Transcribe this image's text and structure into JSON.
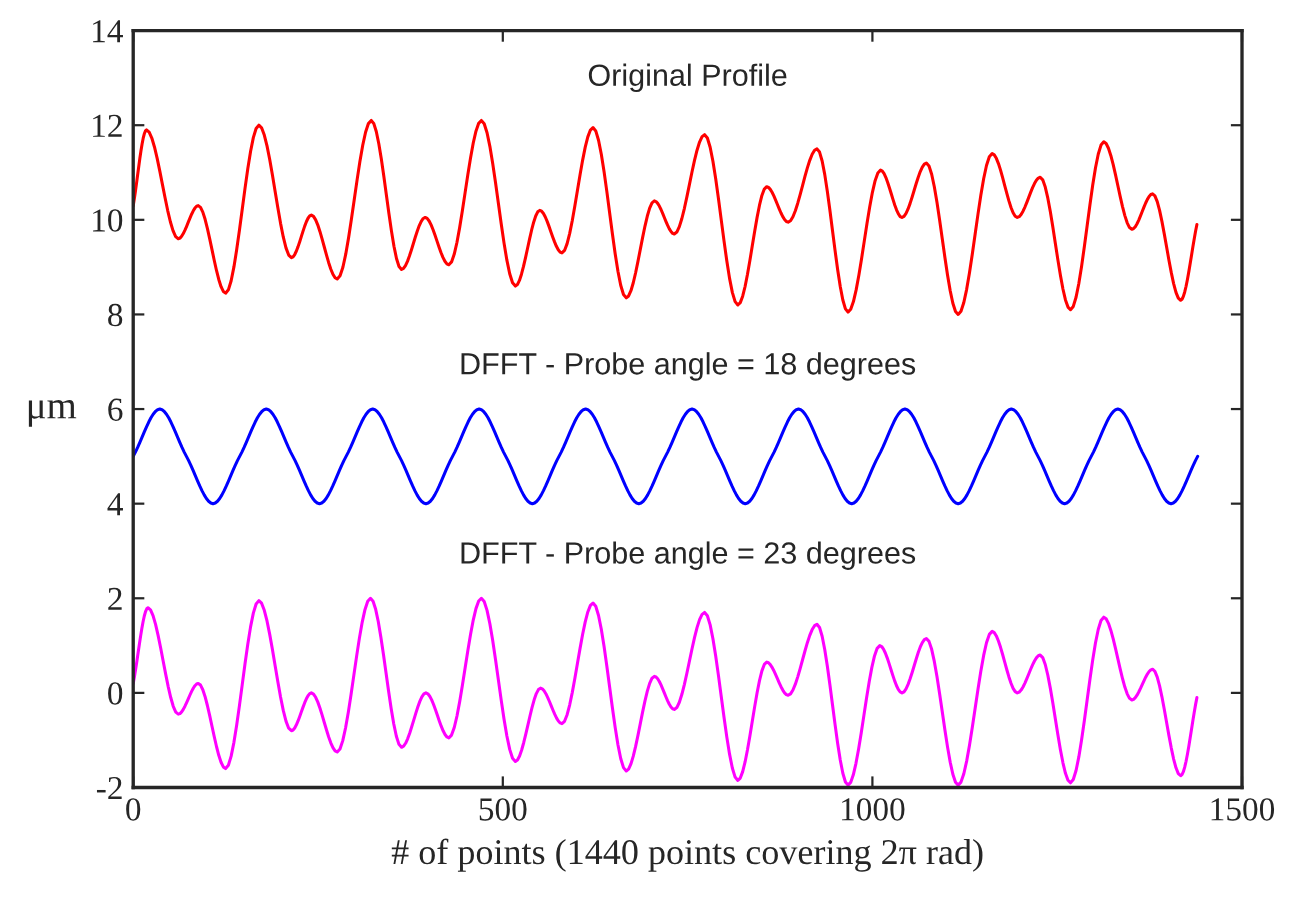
{
  "chart_data": {
    "type": "line",
    "xlabel": "# of points (1440 points covering 2π rad)",
    "ylabel": "μm",
    "xlim": [
      0,
      1500
    ],
    "xticks": [
      0,
      500,
      1000,
      1500
    ],
    "ylim": [
      -2,
      14
    ],
    "yticks": [
      -2,
      0,
      2,
      4,
      6,
      8,
      10,
      12,
      14
    ],
    "grid": false,
    "legend": false,
    "marker": "none",
    "line_style": "solid",
    "series": [
      {
        "name": "Original Profile",
        "color": "#ff0000",
        "x": [
          0,
          18,
          61,
          88,
          125,
          170,
          214,
          241,
          276,
          322,
          363,
          395,
          427,
          471,
          517,
          550,
          580,
          622,
          667,
          705,
          732,
          773,
          818,
          857,
          886,
          925,
          967,
          1011,
          1040,
          1073,
          1116,
          1162,
          1196,
          1227,
          1268,
          1313,
          1351,
          1379,
          1417,
          1439
        ],
        "values": [
          10.3,
          11.9,
          9.6,
          10.3,
          8.45,
          12.0,
          9.2,
          10.1,
          8.75,
          12.1,
          8.95,
          10.05,
          9.05,
          12.1,
          8.6,
          10.2,
          9.3,
          11.95,
          8.35,
          10.4,
          9.7,
          11.8,
          8.2,
          10.7,
          9.95,
          11.5,
          8.05,
          11.05,
          10.05,
          11.2,
          8.0,
          11.4,
          10.05,
          10.9,
          8.1,
          11.65,
          9.8,
          10.55,
          8.3,
          9.9
        ]
      },
      {
        "name": "DFFT - Probe angle = 18 degrees",
        "color": "#0000ff",
        "x": [
          0,
          36,
          72,
          108,
          144,
          180,
          216,
          252,
          288,
          324,
          360,
          396,
          432,
          468,
          504,
          540,
          576,
          612,
          648,
          684,
          720,
          756,
          792,
          828,
          864,
          900,
          936,
          972,
          1008,
          1044,
          1080,
          1116,
          1152,
          1188,
          1224,
          1260,
          1296,
          1332,
          1368,
          1404,
          1440
        ],
        "values": [
          5,
          6,
          5,
          4,
          5,
          6,
          5,
          4,
          5,
          6,
          5,
          4,
          5,
          6,
          5,
          4,
          5,
          6,
          5,
          4,
          5,
          6,
          5,
          4,
          5,
          6,
          5,
          4,
          5,
          6,
          5,
          4,
          5,
          6,
          5,
          4,
          5,
          6,
          5,
          4,
          5
        ]
      },
      {
        "name": "DFFT - Probe angle = 23 degrees",
        "color": "#ff00ff",
        "x": [
          0,
          20,
          61,
          88,
          125,
          170,
          214,
          241,
          276,
          321,
          363,
          396,
          427,
          471,
          517,
          551,
          580,
          622,
          667,
          705,
          732,
          773,
          818,
          857,
          886,
          925,
          967,
          1010,
          1040,
          1073,
          1116,
          1162,
          1196,
          1227,
          1268,
          1313,
          1351,
          1379,
          1417,
          1439
        ],
        "values": [
          0.2,
          1.8,
          -0.45,
          0.2,
          -1.6,
          1.95,
          -0.8,
          0.0,
          -1.25,
          2.0,
          -1.15,
          0.0,
          -0.95,
          2.0,
          -1.45,
          0.1,
          -0.65,
          1.9,
          -1.65,
          0.35,
          -0.35,
          1.7,
          -1.85,
          0.65,
          -0.05,
          1.45,
          -1.95,
          1.0,
          0.0,
          1.15,
          -1.95,
          1.3,
          0.0,
          0.8,
          -1.9,
          1.6,
          -0.15,
          0.5,
          -1.75,
          -0.1
        ]
      }
    ]
  }
}
